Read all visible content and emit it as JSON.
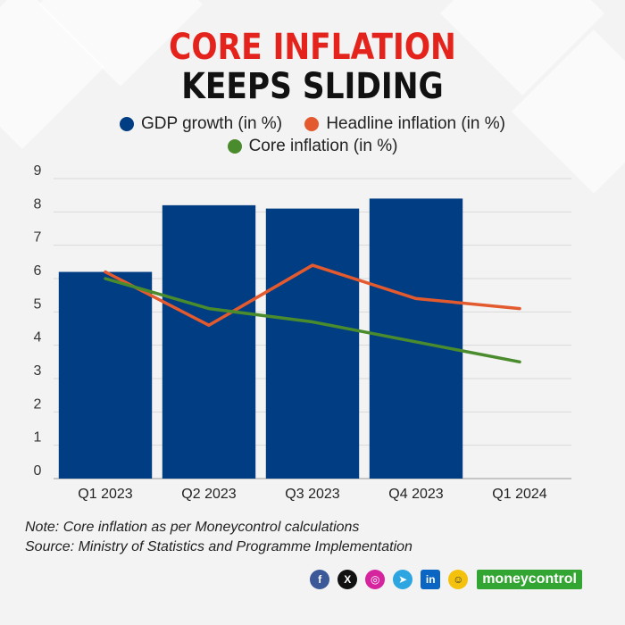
{
  "title": {
    "line1": "CORE INFLATION",
    "line2": "KEEPS SLIDING"
  },
  "colors": {
    "gdp": "#003d82",
    "headline": "#e35a2f",
    "core": "#4a8c2d",
    "title_red": "#e4241c"
  },
  "chart_data": {
    "type": "bar",
    "categories": [
      "Q1 2023",
      "Q2 2023",
      "Q3 2023",
      "Q4 2023",
      "Q1 2024"
    ],
    "ylim": [
      0,
      9
    ],
    "yticks": [
      0,
      1,
      2,
      3,
      4,
      5,
      6,
      7,
      8,
      9
    ],
    "grid": true,
    "legend_position": "top-center",
    "series": [
      {
        "name": "GDP growth (in %)",
        "kind": "bar",
        "values": [
          6.2,
          8.2,
          8.1,
          8.4,
          null
        ]
      },
      {
        "name": "Headline inflation (in %)",
        "kind": "line",
        "values": [
          6.2,
          4.6,
          6.4,
          5.4,
          5.1
        ]
      },
      {
        "name": "Core inflation (in %)",
        "kind": "line",
        "values": [
          6.0,
          5.1,
          4.7,
          4.1,
          3.5
        ]
      }
    ]
  },
  "notes": {
    "note": "Note: Core inflation as per Moneycontrol calculations",
    "source": "Source: Ministry of Statistics and Programme Implementation"
  },
  "footer": {
    "icons": [
      "facebook-icon",
      "x-icon",
      "instagram-icon",
      "telegram-icon",
      "linkedin-icon",
      "snapchat-icon"
    ],
    "brand": "moneycontrol"
  }
}
